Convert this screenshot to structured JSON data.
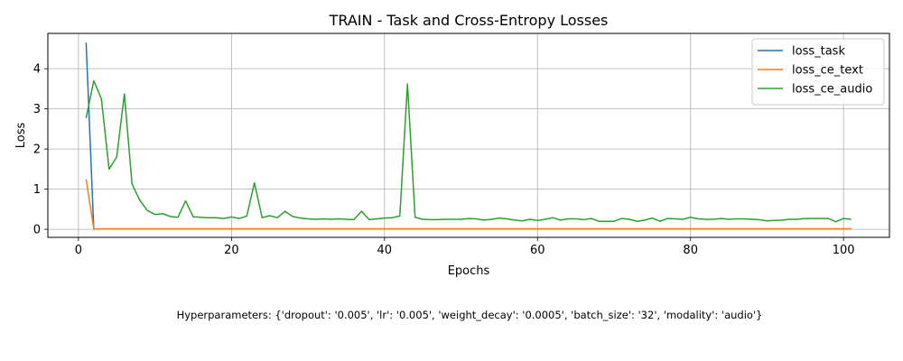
{
  "chart_data": {
    "type": "line",
    "title": "TRAIN - Task and Cross-Entropy Losses",
    "xlabel": "Epochs",
    "ylabel": "Loss",
    "xlim": [
      -4,
      106
    ],
    "ylim": [
      -0.2,
      4.88
    ],
    "xticks": [
      0,
      20,
      40,
      60,
      80,
      100
    ],
    "yticks": [
      0,
      1,
      2,
      3,
      4
    ],
    "grid": true,
    "legend_position": "top-right",
    "x": [
      1,
      2,
      3,
      4,
      5,
      6,
      7,
      8,
      9,
      10,
      11,
      12,
      13,
      14,
      15,
      16,
      17,
      18,
      19,
      20,
      21,
      22,
      23,
      24,
      25,
      26,
      27,
      28,
      29,
      30,
      31,
      32,
      33,
      34,
      35,
      36,
      37,
      38,
      39,
      40,
      41,
      42,
      43,
      44,
      45,
      46,
      47,
      48,
      49,
      50,
      51,
      52,
      53,
      54,
      55,
      56,
      57,
      58,
      59,
      60,
      61,
      62,
      63,
      64,
      65,
      66,
      67,
      68,
      69,
      70,
      71,
      72,
      73,
      74,
      75,
      76,
      77,
      78,
      79,
      80,
      81,
      82,
      83,
      84,
      85,
      86,
      87,
      88,
      89,
      90,
      91,
      92,
      93,
      94,
      95,
      96,
      97,
      98,
      99,
      100,
      101
    ],
    "series": [
      {
        "name": "loss_task",
        "color": "#1f77b4",
        "values": [
          4.65,
          0.01,
          0.01,
          0.01,
          0.01,
          0.01,
          0.01,
          0.01,
          0.01,
          0.01,
          0.01,
          0.01,
          0.01,
          0.01,
          0.01,
          0.01,
          0.01,
          0.01,
          0.01,
          0.01,
          0.01,
          0.01,
          0.01,
          0.01,
          0.01,
          0.01,
          0.01,
          0.01,
          0.01,
          0.01,
          0.01,
          0.01,
          0.01,
          0.01,
          0.01,
          0.01,
          0.01,
          0.01,
          0.01,
          0.01,
          0.01,
          0.01,
          0.01,
          0.01,
          0.01,
          0.01,
          0.01,
          0.01,
          0.01,
          0.01,
          0.01,
          0.01,
          0.01,
          0.01,
          0.01,
          0.01,
          0.01,
          0.01,
          0.01,
          0.01,
          0.01,
          0.01,
          0.01,
          0.01,
          0.01,
          0.01,
          0.01,
          0.01,
          0.01,
          0.01,
          0.01,
          0.01,
          0.01,
          0.01,
          0.01,
          0.01,
          0.01,
          0.01,
          0.01,
          0.01,
          0.01,
          0.01,
          0.01,
          0.01,
          0.01,
          0.01,
          0.01,
          0.01,
          0.01,
          0.01,
          0.01,
          0.01,
          0.01,
          0.01,
          0.01,
          0.01,
          0.01,
          0.01,
          0.01,
          0.01,
          0.01
        ]
      },
      {
        "name": "loss_ce_text",
        "color": "#ff7f0e",
        "values": [
          1.25,
          0.01,
          0.01,
          0.01,
          0.01,
          0.01,
          0.01,
          0.01,
          0.01,
          0.01,
          0.01,
          0.01,
          0.01,
          0.01,
          0.01,
          0.01,
          0.01,
          0.01,
          0.01,
          0.01,
          0.01,
          0.01,
          0.01,
          0.01,
          0.01,
          0.01,
          0.01,
          0.01,
          0.01,
          0.01,
          0.01,
          0.01,
          0.01,
          0.01,
          0.01,
          0.01,
          0.01,
          0.01,
          0.01,
          0.01,
          0.01,
          0.01,
          0.01,
          0.01,
          0.01,
          0.01,
          0.01,
          0.01,
          0.01,
          0.01,
          0.01,
          0.01,
          0.01,
          0.01,
          0.01,
          0.01,
          0.01,
          0.01,
          0.01,
          0.01,
          0.01,
          0.01,
          0.01,
          0.01,
          0.01,
          0.01,
          0.01,
          0.01,
          0.01,
          0.01,
          0.01,
          0.01,
          0.01,
          0.01,
          0.01,
          0.01,
          0.01,
          0.01,
          0.01,
          0.01,
          0.01,
          0.01,
          0.01,
          0.01,
          0.01,
          0.01,
          0.01,
          0.01,
          0.01,
          0.01,
          0.01,
          0.01,
          0.01,
          0.01,
          0.01,
          0.01,
          0.01,
          0.01,
          0.01,
          0.01,
          0.01
        ]
      },
      {
        "name": "loss_ce_audio",
        "color": "#2ca02c",
        "values": [
          2.77,
          3.7,
          3.25,
          1.5,
          1.8,
          3.37,
          1.13,
          0.73,
          0.47,
          0.37,
          0.39,
          0.32,
          0.3,
          0.71,
          0.31,
          0.3,
          0.29,
          0.29,
          0.27,
          0.31,
          0.27,
          0.33,
          1.16,
          0.29,
          0.34,
          0.29,
          0.45,
          0.32,
          0.28,
          0.26,
          0.25,
          0.26,
          0.25,
          0.26,
          0.25,
          0.24,
          0.45,
          0.24,
          0.26,
          0.28,
          0.29,
          0.33,
          3.62,
          0.3,
          0.25,
          0.24,
          0.24,
          0.25,
          0.25,
          0.25,
          0.27,
          0.26,
          0.23,
          0.25,
          0.28,
          0.26,
          0.23,
          0.21,
          0.25,
          0.22,
          0.25,
          0.29,
          0.23,
          0.26,
          0.26,
          0.24,
          0.27,
          0.2,
          0.2,
          0.2,
          0.27,
          0.25,
          0.2,
          0.23,
          0.28,
          0.2,
          0.27,
          0.26,
          0.25,
          0.3,
          0.26,
          0.25,
          0.25,
          0.27,
          0.25,
          0.26,
          0.26,
          0.25,
          0.24,
          0.21,
          0.22,
          0.23,
          0.25,
          0.25,
          0.27,
          0.27,
          0.27,
          0.27,
          0.19,
          0.27,
          0.25
        ]
      }
    ]
  },
  "footer": {
    "hyperparameters": "Hyperparameters: {'dropout': '0.005', 'lr': '0.005', 'weight_decay': '0.0005', 'batch_size': '32', 'modality': 'audio'}"
  }
}
